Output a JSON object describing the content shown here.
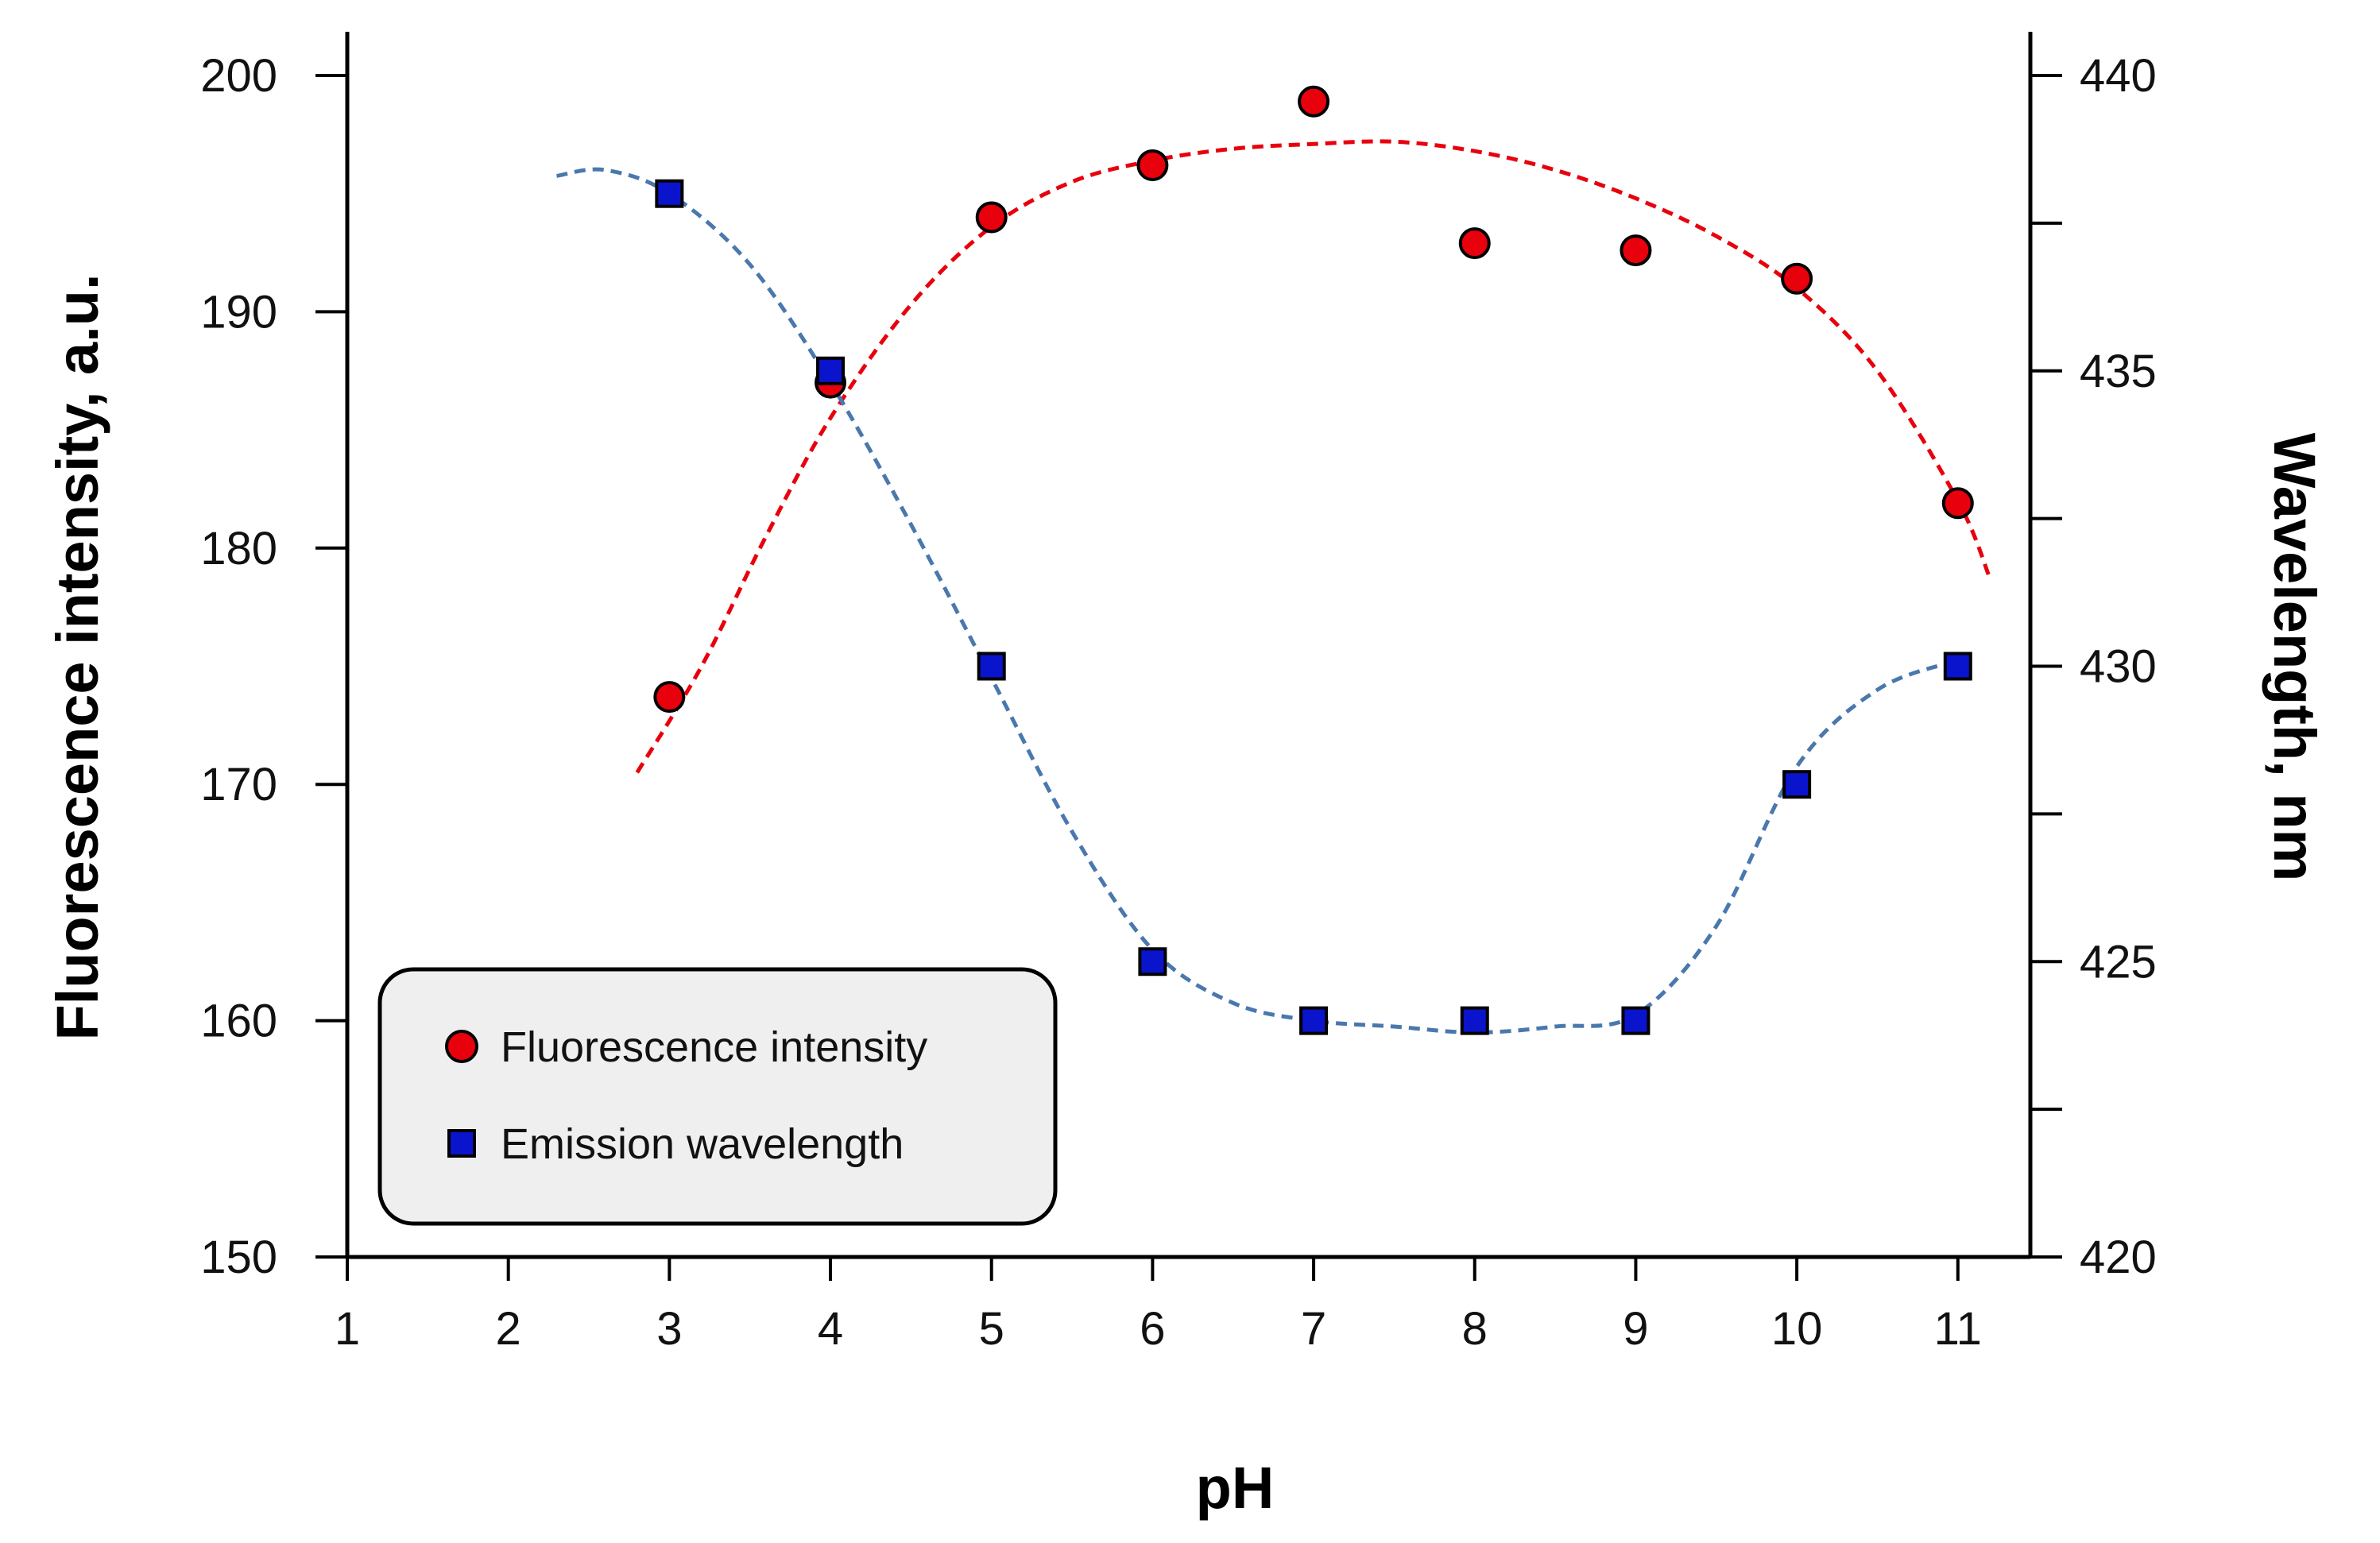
{
  "chart_data": {
    "type": "scatter",
    "title": "",
    "xlabel": "pH",
    "ylabel_left": "Fluorescence intensity, a.u.",
    "ylabel_right": "Wavelength, nm",
    "xlim": [
      1,
      11.45
    ],
    "ylim_left": [
      150,
      200
    ],
    "ylim_right": [
      420,
      440
    ],
    "x_ticks": [
      1,
      2,
      3,
      4,
      5,
      6,
      7,
      8,
      9,
      10,
      11
    ],
    "x_tick_labels": [
      "1",
      "2",
      "3",
      "4",
      "5",
      "6",
      "7",
      "8",
      "9",
      "10",
      "11"
    ],
    "y_left_ticks": [
      150,
      160,
      170,
      180,
      190,
      200
    ],
    "y_left_tick_labels": [
      "150",
      "160",
      "170",
      "180",
      "190",
      "200"
    ],
    "y_right_ticks": [
      420,
      421,
      422,
      423,
      424,
      425,
      426,
      427,
      428,
      429,
      430,
      431,
      432,
      433,
      434,
      435,
      436,
      437,
      438,
      439,
      440
    ],
    "y_right_tick_labels": {
      "420": "420",
      "425": "425",
      "430": "430",
      "435": "435",
      "440": "440"
    },
    "grid": false,
    "legend_position": "bottom-left",
    "series": [
      {
        "name": "Fluorescence intensity",
        "axis": "left",
        "marker": "circle",
        "color": "#e8000d",
        "x": [
          3,
          4,
          5,
          6,
          7,
          8,
          9,
          10,
          11
        ],
        "values": [
          173.7,
          187,
          194,
          196.2,
          198.9,
          192.9,
          192.6,
          191.4,
          181.9
        ],
        "fit": {
          "style": "dashed",
          "color": "#e8000d",
          "x": [
            2.8,
            3.2,
            3.6,
            4.0,
            4.5,
            5.0,
            5.5,
            6.0,
            6.5,
            7.0,
            7.5,
            8.0,
            8.5,
            9.0,
            9.5,
            10.0,
            10.5,
            11.0,
            11.2
          ],
          "values": [
            170.5,
            175,
            180.5,
            185.5,
            190.3,
            193.6,
            195.5,
            196.4,
            196.9,
            197.1,
            197.2,
            196.8,
            196.0,
            194.8,
            193.2,
            191.0,
            187.5,
            182,
            178.7
          ]
        }
      },
      {
        "name": "Emission wavelength",
        "axis": "right",
        "marker": "square",
        "color": "#0a14cc",
        "x": [
          3,
          4,
          5,
          6,
          7,
          8,
          9,
          10,
          11
        ],
        "values": [
          438,
          435,
          430,
          425,
          424,
          424,
          424,
          428,
          430
        ],
        "fit": {
          "style": "dashed",
          "color": "#4a78ad",
          "x": [
            2.3,
            2.6,
            3.0,
            3.5,
            4.0,
            4.5,
            5.0,
            5.5,
            6.0,
            6.5,
            7.0,
            7.5,
            8.0,
            8.5,
            9.0,
            9.5,
            10.0,
            10.5,
            11.0
          ],
          "values": [
            438.3,
            438.4,
            438.0,
            436.8,
            434.8,
            432.4,
            429.8,
            427.2,
            425.2,
            424.3,
            424.0,
            423.9,
            423.8,
            423.9,
            424.1,
            425.6,
            428.3,
            429.6,
            430.1
          ]
        }
      }
    ]
  }
}
